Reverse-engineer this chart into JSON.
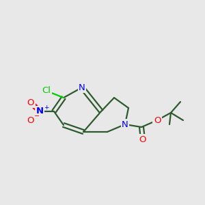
{
  "background_color": "#e8e8e8",
  "bond_color": "#2d5a2d",
  "atom_colors": {
    "N": "#0000ff",
    "O": "#ff0000",
    "Cl": "#00cc00",
    "C": "#2d5a2d"
  },
  "figsize": [
    3.0,
    3.0
  ],
  "dpi": 100
}
